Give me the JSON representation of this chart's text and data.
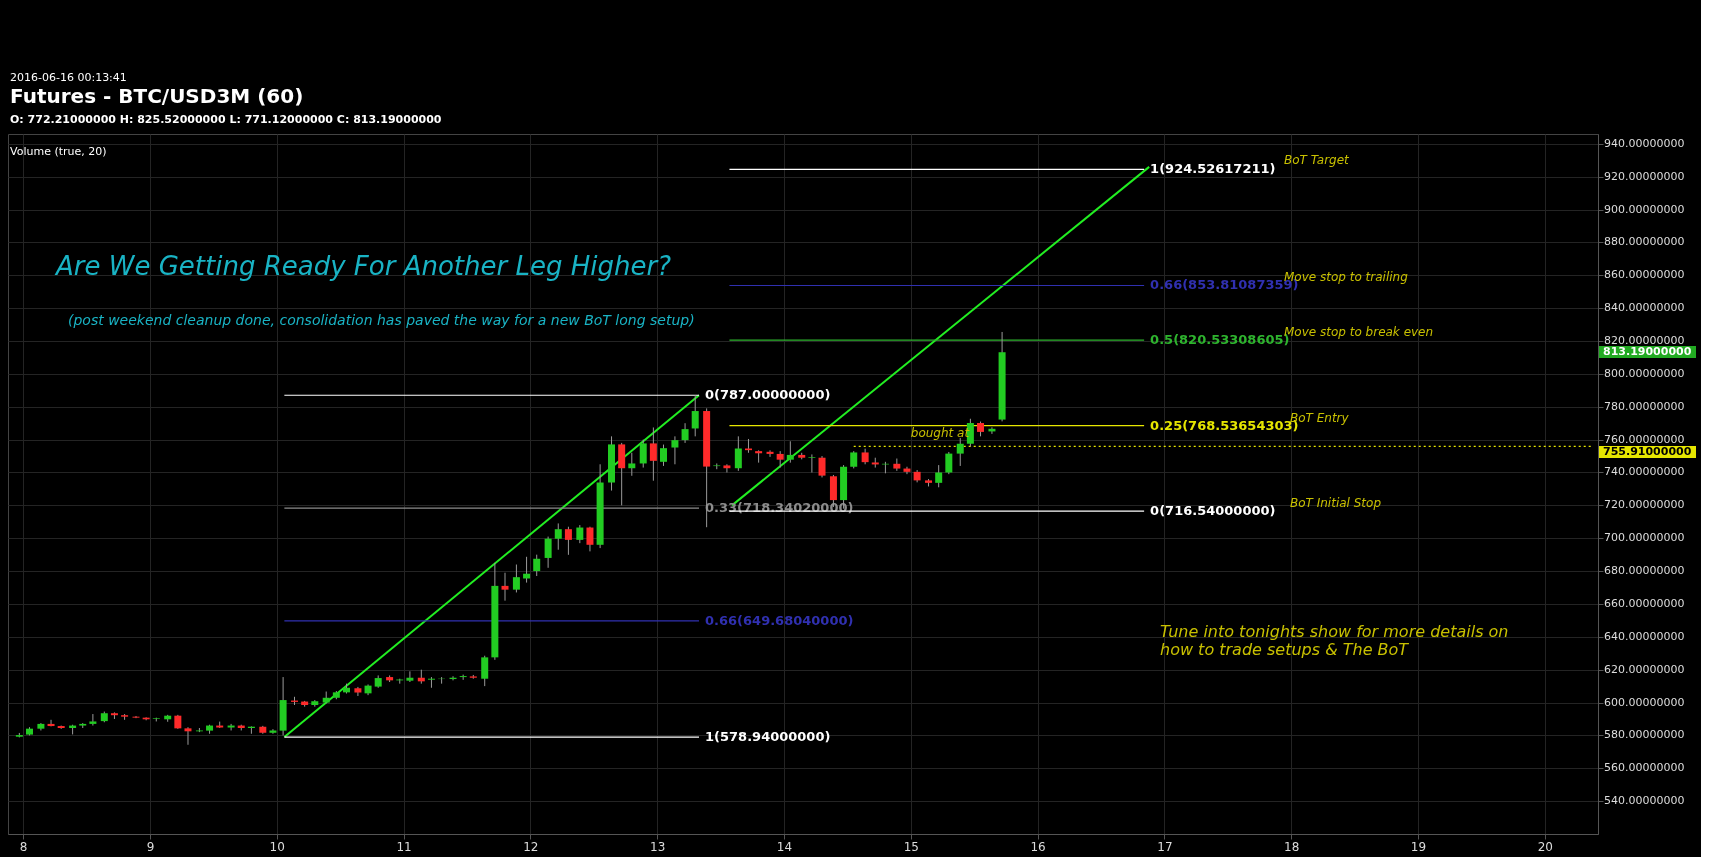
{
  "chart_data": {
    "type": "candlestick",
    "title": "Futures - BTC/USD3M (60)",
    "subtitle": "O: 772.21000000 H: 825.52000000 L: 771.12000000 C: 813.19000000",
    "colors": [
      "#22cc22",
      "#22cc22",
      "#22cc22",
      "#ff2a2a",
      "#ff2a2a",
      "#22cc22",
      "#22cc22",
      "#22cc22",
      "#22cc22",
      "#ff2a2a",
      "#ff2a2a",
      "#ff2a2a",
      "#ff2a2a",
      "#22cc22",
      "#22cc22",
      "#ff2a2a",
      "#ff2a2a",
      "#22cc22",
      "#22cc22",
      "#ff2a2a",
      "#22cc22",
      "#ff2a2a",
      "#22cc22",
      "#ff2a2a",
      "#22cc22",
      "#22cc22",
      "#ff2a2a",
      "#ff2a2a",
      "#22cc22",
      "#22cc22",
      "#22cc22",
      "#22cc22",
      "#ff2a2a",
      "#22cc22",
      "#22cc22",
      "#ff2a2a",
      "#22cc22",
      "#22cc22",
      "#ff2a2a",
      "#22cc22",
      "#22cc22",
      "#22cc22",
      "#22cc22",
      "#ff2a2a",
      "#22cc22",
      "#22cc22",
      "#ff2a2a",
      "#22cc22",
      "#22cc22",
      "#22cc22",
      "#22cc22",
      "#22cc22",
      "#ff2a2a",
      "#22cc22",
      "#ff2a2a",
      "#22cc22",
      "#22cc22",
      "#ff2a2a",
      "#22cc22",
      "#22cc22",
      "#ff2a2a",
      "#22cc22",
      "#22cc22",
      "#22cc22",
      "#22cc22",
      "#ff2a2a",
      "#22cc22",
      "#ff2a2a",
      "#22cc22",
      "#ff2a2a",
      "#ff2a2a",
      "#ff2a2a",
      "#ff2a2a",
      "#22cc22",
      "#ff2a2a",
      "#22cc22",
      "#ff2a2a",
      "#ff2a2a",
      "#22cc22",
      "#22cc22",
      "#ff2a2a",
      "#ff2a2a",
      "#22cc22",
      "#ff2a2a",
      "#ff2a2a",
      "#ff2a2a",
      "#ff2a2a",
      "#22cc22",
      "#22cc22",
      "#22cc22",
      "#22cc22",
      "#ff2a2a",
      "#22cc22",
      "#22cc22"
    ],
    "x": [
      7.97,
      8.05,
      8.14,
      8.22,
      8.3,
      8.39,
      8.47,
      8.55,
      8.64,
      8.72,
      8.8,
      8.89,
      8.97,
      9.05,
      9.14,
      9.22,
      9.3,
      9.39,
      9.47,
      9.55,
      9.64,
      9.72,
      9.8,
      9.89,
      9.97,
      10.05,
      10.14,
      10.22,
      10.3,
      10.39,
      10.47,
      10.55,
      10.64,
      10.72,
      10.8,
      10.89,
      10.97,
      11.05,
      11.14,
      11.22,
      11.3,
      11.39,
      11.47,
      11.55,
      11.64,
      11.72,
      11.8,
      11.89,
      11.97,
      12.05,
      12.14,
      12.22,
      12.3,
      12.39,
      12.47,
      12.55,
      12.64,
      12.72,
      12.8,
      12.89,
      12.97,
      13.05,
      13.14,
      13.22,
      13.3,
      13.39,
      13.47,
      13.55,
      13.64,
      13.72,
      13.8,
      13.89,
      13.97,
      14.05,
      14.14,
      14.22,
      14.3,
      14.39,
      14.47,
      14.55,
      14.64,
      14.72,
      14.8,
      14.89,
      14.97,
      15.05,
      15.14,
      15.22,
      15.3,
      15.39,
      15.47,
      15.55,
      15.64,
      15.72
    ],
    "ohlc": [
      [
        579.2,
        581.5,
        578.8,
        580.2
      ],
      [
        580.5,
        585,
        580,
        584.1
      ],
      [
        584.1,
        587.5,
        583,
        587
      ],
      [
        587,
        589.5,
        585.5,
        585.7
      ],
      [
        585.7,
        586,
        584,
        584.5
      ],
      [
        584.5,
        586.5,
        580.6,
        586
      ],
      [
        586,
        587.5,
        584.5,
        587
      ],
      [
        587,
        593,
        586,
        588.5
      ],
      [
        588.7,
        594.5,
        588,
        593.5
      ],
      [
        593.5,
        594,
        590,
        592.3
      ],
      [
        592.3,
        593,
        589.5,
        591.4
      ],
      [
        591.4,
        591.8,
        590.5,
        590.8
      ],
      [
        590.8,
        591,
        589.2,
        589.8
      ],
      [
        590,
        590.8,
        588.5,
        590.4
      ],
      [
        589.8,
        592.5,
        588.3,
        592
      ],
      [
        592,
        592.5,
        584,
        584.3
      ],
      [
        584.3,
        585,
        574.3,
        582.5
      ],
      [
        582.5,
        584.5,
        582,
        583
      ],
      [
        582.9,
        586.5,
        581,
        586
      ],
      [
        586,
        588.4,
        584.5,
        584.8
      ],
      [
        584.8,
        587,
        583,
        586
      ],
      [
        586,
        586.5,
        583,
        584.5
      ],
      [
        584.5,
        585.5,
        581,
        585.3
      ],
      [
        585.3,
        585.8,
        581,
        581.6
      ],
      [
        581.6,
        583.8,
        581,
        583
      ],
      [
        582.9,
        615.5,
        580,
        601.5
      ],
      [
        601.2,
        603.5,
        598.5,
        600.4
      ],
      [
        600.6,
        601,
        597.5,
        598.5
      ],
      [
        598.5,
        601.5,
        597.5,
        600.8
      ],
      [
        600,
        606.7,
        599.5,
        602.9
      ],
      [
        602.9,
        607,
        602,
        606.2
      ],
      [
        606.2,
        611.5,
        605.5,
        609
      ],
      [
        608.7,
        609.5,
        604,
        606.1
      ],
      [
        605.6,
        611,
        604.5,
        610.3
      ],
      [
        609.7,
        616.5,
        609,
        614.9
      ],
      [
        615.5,
        616.5,
        612.5,
        613.5
      ],
      [
        613.5,
        614.5,
        611.5,
        614
      ],
      [
        613.3,
        619,
        612.5,
        615.1
      ],
      [
        615.1,
        620,
        611.5,
        612.9
      ],
      [
        613.9,
        615.5,
        609,
        614.5
      ],
      [
        614.3,
        615.5,
        611.5,
        614.5
      ],
      [
        614.3,
        616,
        613.5,
        615.1
      ],
      [
        615.5,
        617,
        613.8,
        616.1
      ],
      [
        615.9,
        616.8,
        614.5,
        615.1
      ],
      [
        614.5,
        628.5,
        610,
        627.5
      ],
      [
        627.5,
        685,
        626,
        671
      ],
      [
        671,
        679,
        662,
        668.7
      ],
      [
        668.7,
        684,
        667,
        676.3
      ],
      [
        675.5,
        688.7,
        673,
        678.4
      ],
      [
        680,
        690,
        677,
        687.5
      ],
      [
        688,
        701,
        682,
        699.7
      ],
      [
        699.7,
        709,
        693,
        705.5
      ],
      [
        705.5,
        707,
        689.9,
        699
      ],
      [
        699,
        708,
        697,
        706.5
      ],
      [
        706.5,
        707,
        692,
        696
      ],
      [
        696,
        745,
        694,
        733.9
      ],
      [
        733.9,
        762,
        729,
        757.1
      ],
      [
        757.1,
        758,
        720,
        742.6
      ],
      [
        742.6,
        752,
        738,
        745.5
      ],
      [
        745.5,
        760,
        743,
        757.7
      ],
      [
        757.7,
        767.4,
        735,
        747.1
      ],
      [
        746.5,
        757,
        744,
        754.8
      ],
      [
        755.2,
        762,
        745,
        759.7
      ],
      [
        759.7,
        770,
        758,
        766.4
      ],
      [
        766.8,
        787,
        762,
        777.4
      ],
      [
        777.4,
        779,
        706.7,
        743.6
      ],
      [
        743.9,
        745.5,
        742,
        744.3
      ],
      [
        744.3,
        745,
        740,
        742.6
      ],
      [
        742.6,
        762,
        741,
        754.6
      ],
      [
        754.6,
        760.4,
        752,
        753.6
      ],
      [
        753,
        753.5,
        746,
        751.7
      ],
      [
        752.6,
        753.5,
        749.5,
        751.3
      ],
      [
        751.3,
        753,
        743,
        747.8
      ],
      [
        747.8,
        759,
        746,
        750.7
      ],
      [
        750.7,
        752,
        748,
        749
      ],
      [
        749,
        751,
        740,
        749.4
      ],
      [
        749,
        750,
        737,
        738.1
      ],
      [
        737.7,
        738.5,
        719,
        723.2
      ],
      [
        723.2,
        744.5,
        718,
        743.5
      ],
      [
        743.5,
        753,
        742.5,
        752.2
      ],
      [
        752.2,
        754.5,
        745,
        746.3
      ],
      [
        746.1,
        749,
        743,
        744.9
      ],
      [
        744.9,
        746.5,
        739.5,
        745.3
      ],
      [
        745.3,
        748.5,
        741,
        742.4
      ],
      [
        742.4,
        743.5,
        739,
        740.4
      ],
      [
        740.4,
        741.5,
        734,
        735.2
      ],
      [
        735.2,
        736,
        731.5,
        733.7
      ],
      [
        733.7,
        744.5,
        731,
        740
      ],
      [
        740,
        752.5,
        739,
        751.5
      ],
      [
        751.5,
        761,
        744,
        757.5
      ],
      [
        757.5,
        772.7,
        756,
        770.1
      ],
      [
        770.1,
        771,
        762,
        764.7
      ],
      [
        765,
        767.5,
        763.5,
        766.6
      ],
      [
        772.21,
        825.52,
        771.12,
        813.19
      ]
    ],
    "series": [
      {
        "type": "line",
        "color": "#22ee22",
        "x": [
          10.06,
          13.33
        ],
        "values": [
          579,
          787
        ]
      },
      {
        "type": "line",
        "color": "#22ee22",
        "x": [
          13.59,
          16.88
        ],
        "values": [
          720,
          926
        ]
      },
      {
        "type": "line",
        "name": "0(787.00000000)",
        "color": "#ffffff",
        "x": [
          10.06,
          13.33
        ],
        "values": [
          787,
          787
        ]
      },
      {
        "type": "line",
        "name": "0.33(718.34020000)",
        "color": "#8c8c8c",
        "x": [
          10.06,
          13.33
        ],
        "values": [
          718.3402,
          718.3402
        ]
      },
      {
        "type": "line",
        "name": "0.66(649.68040000)",
        "color": "#3030b0",
        "x": [
          10.06,
          13.33
        ],
        "values": [
          649.6804,
          649.6804
        ]
      },
      {
        "type": "line",
        "name": "1(578.94000000)",
        "color": "#ffffff",
        "x": [
          10.06,
          13.33
        ],
        "values": [
          578.94,
          578.94
        ]
      },
      {
        "type": "line",
        "name": "1(924.52617211)",
        "color": "#ffffff",
        "x": [
          13.57,
          16.84
        ],
        "values": [
          924.52617211,
          924.52617211
        ]
      },
      {
        "type": "line",
        "name": "0.66(853.81087359)",
        "color": "#3030b0",
        "x": [
          13.57,
          16.84
        ],
        "values": [
          853.81087359,
          853.81087359
        ]
      },
      {
        "type": "line",
        "name": "0.5(820.53308605)",
        "color": "#2eb42e",
        "x": [
          13.57,
          16.84
        ],
        "values": [
          820.53308605,
          820.53308605
        ]
      },
      {
        "type": "line",
        "name": "0.25(768.53654303)",
        "color": "#e6e600",
        "x": [
          13.57,
          16.84
        ],
        "values": [
          768.53654303,
          768.53654303
        ]
      },
      {
        "type": "line",
        "name": "0(716.54000000)",
        "color": "#ffffff",
        "x": [
          13.57,
          16.84
        ],
        "values": [
          716.54,
          716.54
        ]
      },
      {
        "type": "line",
        "color": "#e6e600",
        "line_style": "dotted",
        "x": [
          14.55,
          20.38
        ],
        "values": [
          755.91,
          755.91
        ]
      }
    ],
    "annotations": [
      "2016-06-16 00:13:41",
      "Volume (true, 20)",
      "Are We Getting Ready For Another Leg Higher?",
      "(post weekend cleanup done, consolidation has paved the way for a new BoT long setup)",
      "Tune into tonights show for more details on\nhow to trade setups & The BoT",
      "BoT Target",
      "Move stop to trailing",
      "Move stop to break even",
      "BoT Entry",
      "BoT Initial Stop",
      {
        "text": "bought at",
        "x": 15.0,
        "y": 755.91
      },
      "813.19000000",
      "755.91000000"
    ],
    "xlim": [
      7.92,
      20.38
    ],
    "xticks": [
      8,
      9,
      10,
      11,
      12,
      13,
      14,
      15,
      16,
      17,
      18,
      19,
      20
    ],
    "ylim": [
      520,
      946
    ],
    "yticks": [
      {
        "value": 540,
        "label": "540.00000000"
      },
      {
        "value": 560,
        "label": "560.00000000"
      },
      {
        "value": 580,
        "label": "580.00000000"
      },
      {
        "value": 600,
        "label": "600.00000000"
      },
      {
        "value": 620,
        "label": "620.00000000"
      },
      {
        "value": 640,
        "label": "640.00000000"
      },
      {
        "value": 660,
        "label": "660.00000000"
      },
      {
        "value": 680,
        "label": "680.00000000"
      },
      {
        "value": 700,
        "label": "700.00000000"
      },
      {
        "value": 720,
        "label": "720.00000000"
      },
      {
        "value": 740,
        "label": "740.00000000"
      },
      {
        "value": 760,
        "label": "760.00000000"
      },
      {
        "value": 780,
        "label": "780.00000000"
      },
      {
        "value": 800,
        "label": "800.00000000"
      },
      {
        "value": 820,
        "label": "820.00000000"
      },
      {
        "value": 840,
        "label": "840.00000000"
      },
      {
        "value": 860,
        "label": "860.00000000"
      },
      {
        "value": 880,
        "label": "880.00000000"
      },
      {
        "value": 900,
        "label": "900.00000000"
      },
      {
        "value": 920,
        "label": "920.00000000"
      },
      {
        "value": 940,
        "label": "940.00000000"
      }
    ],
    "grid": true
  }
}
